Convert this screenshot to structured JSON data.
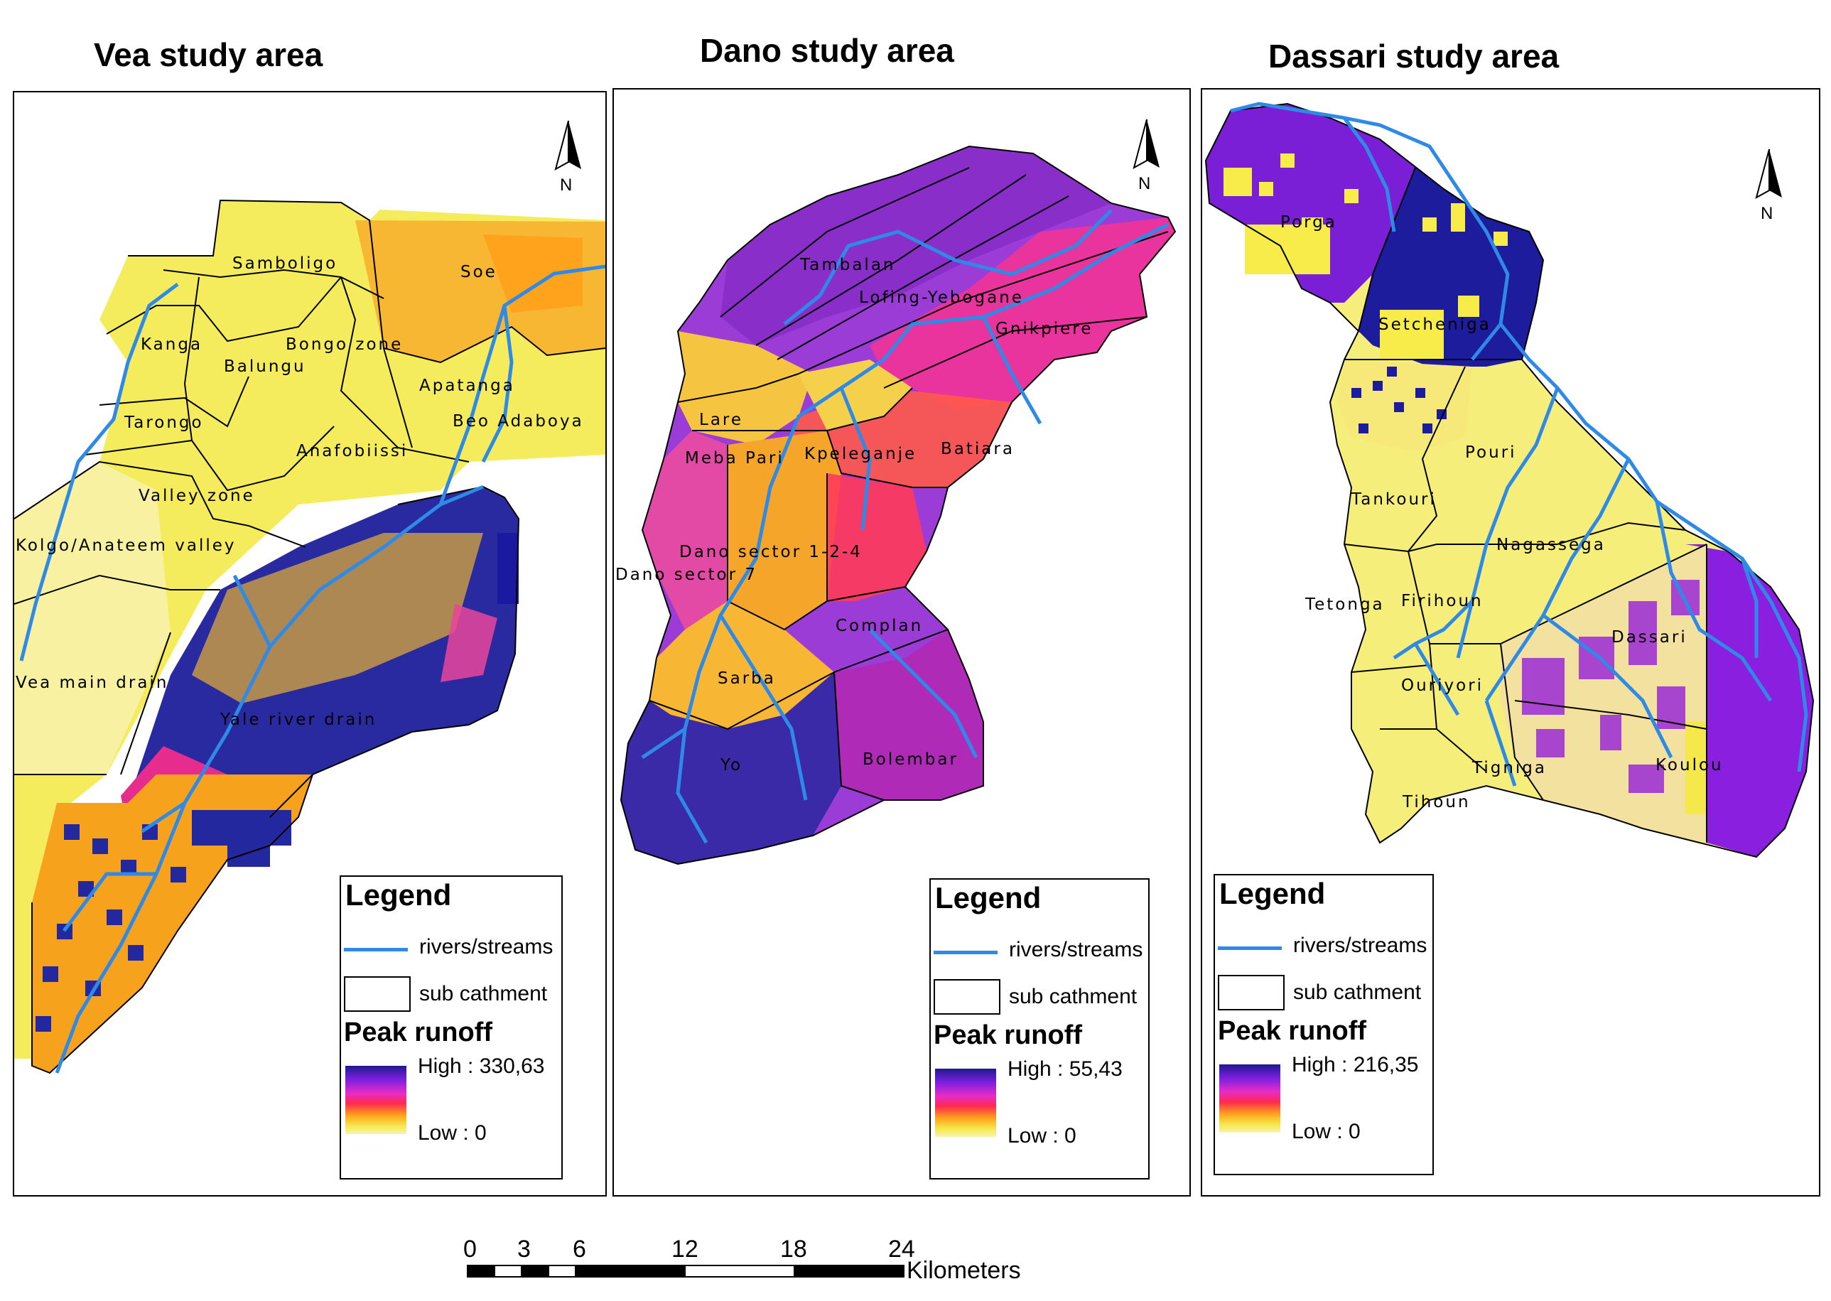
{
  "panels": [
    {
      "title": "Vea study area",
      "labels": [
        "Samboligo",
        "Soe",
        "Kanga",
        "Bongo zone",
        "Balungu",
        "Apatanga",
        "Tarongo",
        "Beo Adaboya",
        "Anafobiissi",
        "Valley zone",
        "Kolgo/Anateem valley",
        "Vea main drain",
        "Yale river drain"
      ],
      "legend": {
        "title": "Legend",
        "river": "rivers/streams",
        "sub": "sub cathment",
        "peak": "Peak runoff",
        "high": "High : 330,63",
        "low": "Low : 0"
      }
    },
    {
      "title": "Dano study area",
      "labels": [
        "Tambalan",
        "Lofing-Yebogane",
        "Gnikpiere",
        "Lare",
        "Meba Pari",
        "Kpeleganje",
        "Batiara",
        "Dano sector 1-2-4",
        "Dano sector 7",
        "Complan",
        "Sarba",
        "Yo",
        "Bolembar"
      ],
      "legend": {
        "title": "Legend",
        "river": "rivers/streams",
        "sub": "sub cathment",
        "peak": "Peak runoff",
        "high": "High : 55,43",
        "low": "Low : 0"
      }
    },
    {
      "title": "Dassari study area",
      "labels": [
        "Porga",
        "Setcheniga",
        "Pouri",
        "Tankouri",
        "Nagassega",
        "Tetonga",
        "Firihoun",
        "Dassari",
        "Ouriyori",
        "Tigniga",
        "Koulou",
        "Tihoun"
      ],
      "legend": {
        "title": "Legend",
        "river": "rivers/streams",
        "sub": "sub cathment",
        "peak": "Peak runoff",
        "high": "High : 216,35",
        "low": "Low : 0"
      }
    }
  ],
  "north_symbol": "N",
  "scale": {
    "ticks": [
      "0",
      "3",
      "6",
      "12",
      "18",
      "24"
    ],
    "unit": "Kilometers"
  },
  "colors": {
    "river": "#2e8ae6",
    "low": "#f7f3b3",
    "mid_yellow": "#f5e84a",
    "orange": "#ff9f1c",
    "red": "#ff2a4f",
    "magenta": "#e62cc7",
    "purple": "#7b1fe0",
    "navy": "#1f1a8e"
  }
}
